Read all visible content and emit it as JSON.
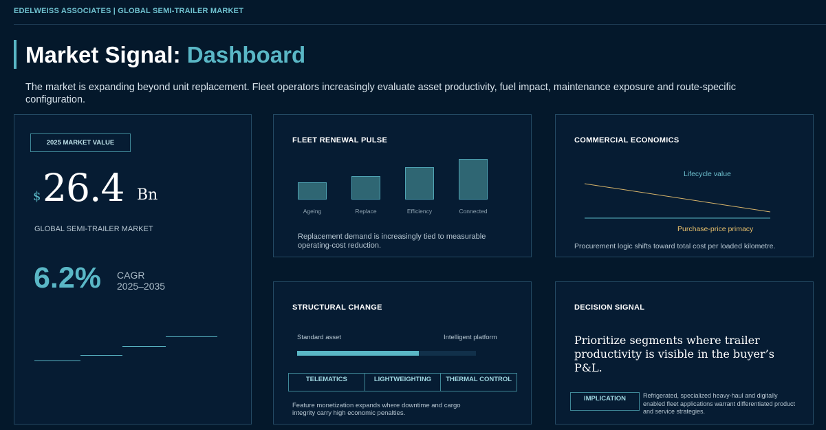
{
  "header": {
    "brand_line": "EDELWEISS ASSOCIATES | GLOBAL SEMI-TRAILER MARKET",
    "title_main": "Market Signal:",
    "title_accent": "Dashboard",
    "intro": "The market is expanding beyond unit replacement. Fleet operators increasingly evaluate asset productivity, fuel impact, maintenance exposure and route-specific configuration."
  },
  "market": {
    "badge": "2025 MARKET VALUE",
    "currency": "$",
    "value": "26.4",
    "unit": "Bn",
    "caption": "GLOBAL SEMI-TRAILER MARKET",
    "cagr_value": "6.2%",
    "cagr_label": "CAGR",
    "cagr_period": "2025–2035"
  },
  "fleet": {
    "title": "FLEET RENEWAL PULSE",
    "bars": [
      {
        "label": "Ageing",
        "value": 25
      },
      {
        "label": "Replace",
        "value": 34
      },
      {
        "label": "Efficiency",
        "value": 47
      },
      {
        "label": "Connected",
        "value": 59
      }
    ],
    "note": "Replacement demand is increasingly tied to measurable operating-cost reduction."
  },
  "economics": {
    "title": "COMMERCIAL ECONOMICS",
    "lifecycle_label": "Lifecycle value",
    "purchase_label": "Purchase-price primacy",
    "note": "Procurement logic shifts toward total cost per loaded kilometre.",
    "colors": {
      "lifecycle": "#5ab7c6",
      "purchase": "#d8b56a"
    }
  },
  "structural": {
    "title": "STRUCTURAL CHANGE",
    "left_label": "Standard asset",
    "right_label": "Intelligent platform",
    "progress": 0.68,
    "tags": [
      "TELEMATICS",
      "LIGHTWEIGHTING",
      "THERMAL CONTROL"
    ],
    "note": "Feature monetization expands where downtime and cargo integrity carry high economic penalties."
  },
  "decision": {
    "title": "DECISION SIGNAL",
    "statement": "Prioritize segments where trailer productivity is visible in the buyer’s P&L.",
    "implication_label": "IMPLICATION",
    "implication_text": "Refrigerated, specialized heavy-haul and digitally enabled fleet applications warrant differentiated product and service strategies."
  }
}
